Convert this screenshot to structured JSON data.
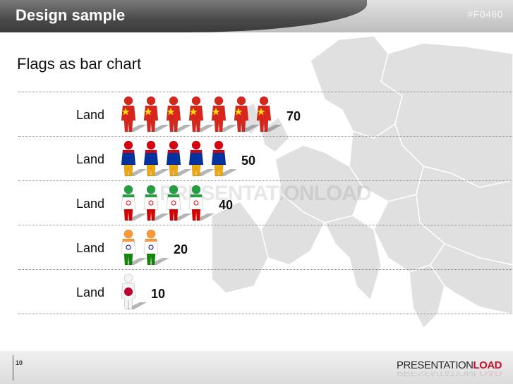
{
  "header": {
    "title": "Design sample",
    "code": "#F0460"
  },
  "subtitle": "Flags as bar chart",
  "footer": {
    "page_number": "10",
    "brand_part1": "PRESENTATION",
    "brand_part2": "LOAD"
  },
  "colors": {
    "header_dark": "#4a4a4a",
    "brand_red": "#c8102e",
    "map_gray": "#dcdcdc"
  },
  "icons": [
    "person-icon",
    "world-map",
    "presentationload-logo"
  ],
  "chart_data": {
    "type": "bar",
    "orientation": "horizontal",
    "title": "Flags as bar chart",
    "categories": [
      "Land",
      "Land",
      "Land",
      "Land",
      "Land"
    ],
    "values": [
      70,
      50,
      40,
      20,
      10
    ],
    "unit_per_icon": 10,
    "flags": [
      "china",
      "armenia",
      "iran",
      "india",
      "japan"
    ],
    "grid": "dotted row separators",
    "legend": "none"
  }
}
